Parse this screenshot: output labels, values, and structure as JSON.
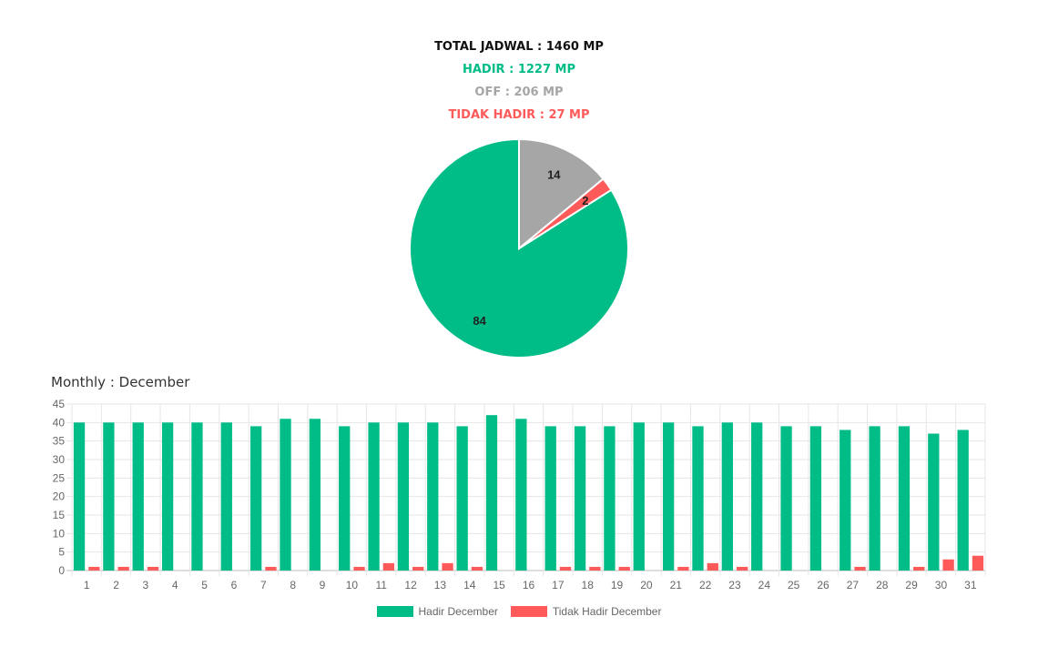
{
  "summary": {
    "total": "TOTAL JADWAL : 1460 MP",
    "hadir": "HADIR : 1227 MP",
    "off": "OFF : 206 MP",
    "tidak_hadir": "TIDAK HADIR : 27 MP"
  },
  "colors": {
    "hadir": "#00bc87",
    "off": "#a6a6a6",
    "tidak_hadir": "#ff5a5a",
    "total": "#111111"
  },
  "chart_data": [
    {
      "type": "pie",
      "slices": [
        {
          "key": "hadir",
          "value": 84,
          "label": "84",
          "color": "#00bc87"
        },
        {
          "key": "tidak_hadir",
          "value": 2,
          "label": "2",
          "color": "#ff5a5a"
        },
        {
          "key": "off",
          "value": 14,
          "label": "14",
          "color": "#a6a6a6"
        }
      ]
    },
    {
      "type": "bar",
      "title": "Monthly : December",
      "categories": [
        "1",
        "2",
        "3",
        "4",
        "5",
        "6",
        "7",
        "8",
        "9",
        "10",
        "11",
        "12",
        "13",
        "14",
        "15",
        "16",
        "17",
        "18",
        "19",
        "20",
        "21",
        "22",
        "23",
        "24",
        "25",
        "26",
        "27",
        "28",
        "29",
        "30",
        "31"
      ],
      "series": [
        {
          "name": "Hadir December",
          "color": "#00bc87",
          "values": [
            40,
            40,
            40,
            40,
            40,
            40,
            39,
            41,
            41,
            39,
            40,
            40,
            40,
            39,
            42,
            41,
            39,
            39,
            39,
            40,
            40,
            39,
            40,
            40,
            39,
            39,
            38,
            39,
            39,
            37,
            38
          ]
        },
        {
          "name": "Tidak Hadir December",
          "color": "#ff5a5a",
          "values": [
            1,
            1,
            1,
            0,
            0,
            0,
            1,
            0,
            0,
            1,
            2,
            1,
            2,
            1,
            0,
            0,
            1,
            1,
            1,
            0,
            1,
            2,
            1,
            0,
            0,
            0,
            1,
            0,
            1,
            3,
            4
          ]
        }
      ],
      "y_ticks": [
        "0",
        "5",
        "10",
        "15",
        "20",
        "25",
        "30",
        "35",
        "40",
        "45"
      ],
      "ylim": [
        0,
        45
      ],
      "grid": true,
      "legend_position": "bottom"
    }
  ]
}
